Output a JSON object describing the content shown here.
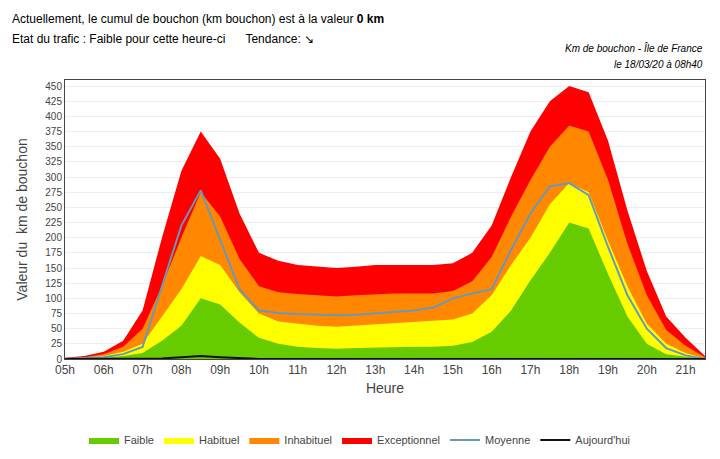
{
  "chart_data": {
    "type": "area",
    "annotations": [
      "Actuellement, le cumul de bouchon (km bouchon) est à la valeur ",
      "0 km",
      "Etat du trafic : Faible pour cette heure-ci",
      "Tendance: ↘",
      "Km de bouchon - Île de France",
      "le 18/03/20 à 08h40"
    ],
    "x_label": "Heure",
    "y_label": "Valeur du  km de bouchon",
    "x": [
      5.0,
      5.5,
      6.0,
      6.5,
      7.0,
      7.5,
      8.0,
      8.5,
      9.0,
      9.5,
      10.0,
      10.5,
      11.0,
      11.5,
      12.0,
      12.5,
      13.0,
      13.5,
      14.0,
      14.5,
      15.0,
      15.5,
      16.0,
      16.5,
      17.0,
      17.5,
      18.0,
      18.5,
      19.0,
      19.5,
      20.0,
      20.5,
      21.0,
      21.5
    ],
    "series": [
      {
        "name": "Faible",
        "type": "area",
        "color": "#66cc00",
        "values": [
          0,
          1,
          2,
          5,
          10,
          30,
          55,
          100,
          90,
          60,
          35,
          25,
          20,
          18,
          17,
          18,
          19,
          20,
          20,
          20,
          22,
          28,
          45,
          80,
          130,
          175,
          225,
          215,
          140,
          70,
          25,
          8,
          4,
          0
        ]
      },
      {
        "name": "Habituel",
        "type": "area",
        "color": "#ffff00",
        "values": [
          0,
          2,
          5,
          12,
          25,
          70,
          115,
          170,
          155,
          110,
          75,
          62,
          58,
          55,
          53,
          55,
          57,
          60,
          62,
          63,
          65,
          75,
          105,
          155,
          200,
          255,
          290,
          275,
          195,
          120,
          58,
          25,
          10,
          1
        ]
      },
      {
        "name": "Inhabituel",
        "type": "area",
        "color": "#ff8800",
        "values": [
          1,
          3,
          8,
          20,
          50,
          120,
          200,
          275,
          235,
          165,
          120,
          110,
          107,
          105,
          103,
          105,
          107,
          108,
          108,
          108,
          112,
          128,
          168,
          235,
          295,
          350,
          385,
          375,
          295,
          190,
          105,
          48,
          22,
          3
        ]
      },
      {
        "name": "Exceptionnel",
        "type": "area",
        "color": "#ff0000",
        "values": [
          2,
          5,
          12,
          30,
          80,
          200,
          310,
          375,
          330,
          240,
          175,
          162,
          155,
          152,
          150,
          152,
          155,
          155,
          155,
          155,
          158,
          175,
          220,
          300,
          375,
          425,
          450,
          440,
          360,
          245,
          145,
          70,
          35,
          5
        ]
      },
      {
        "name": "Moyenne",
        "type": "line",
        "color": "#6699bb",
        "values": [
          0,
          1,
          3,
          8,
          20,
          120,
          220,
          278,
          195,
          115,
          80,
          76,
          74,
          73,
          72,
          73,
          75,
          78,
          80,
          85,
          100,
          108,
          115,
          180,
          240,
          285,
          290,
          270,
          185,
          105,
          50,
          18,
          6,
          0
        ]
      },
      {
        "name": "Aujourd'hui",
        "type": "line",
        "color": "#111111",
        "values": [
          0,
          0,
          0,
          0,
          0,
          1,
          3,
          5,
          3,
          1,
          0,
          0,
          0,
          0,
          0,
          0,
          0,
          0,
          0,
          0,
          0,
          0,
          0,
          0,
          0,
          0,
          0,
          0,
          0,
          0,
          0,
          0,
          0,
          0
        ]
      }
    ],
    "xlim": [
      5,
      21.5
    ],
    "xticks": [
      {
        "value": 5,
        "label": "05h"
      },
      {
        "value": 6,
        "label": "06h"
      },
      {
        "value": 7,
        "label": "07h"
      },
      {
        "value": 8,
        "label": "08h"
      },
      {
        "value": 9,
        "label": "09h"
      },
      {
        "value": 10,
        "label": "10h"
      },
      {
        "value": 11,
        "label": "11h"
      },
      {
        "value": 12,
        "label": "12h"
      },
      {
        "value": 13,
        "label": "13h"
      },
      {
        "value": 14,
        "label": "14h"
      },
      {
        "value": 15,
        "label": "15h"
      },
      {
        "value": 16,
        "label": "16h"
      },
      {
        "value": 17,
        "label": "17h"
      },
      {
        "value": 18,
        "label": "18h"
      },
      {
        "value": 19,
        "label": "19h"
      },
      {
        "value": 20,
        "label": "20h"
      },
      {
        "value": 21,
        "label": "21h"
      }
    ],
    "ylim": [
      0,
      460
    ],
    "yticks": [
      0,
      25,
      50,
      75,
      100,
      125,
      150,
      175,
      200,
      225,
      250,
      275,
      300,
      325,
      350,
      375,
      400,
      425,
      450
    ],
    "grid": "y",
    "legend": "bottom"
  }
}
